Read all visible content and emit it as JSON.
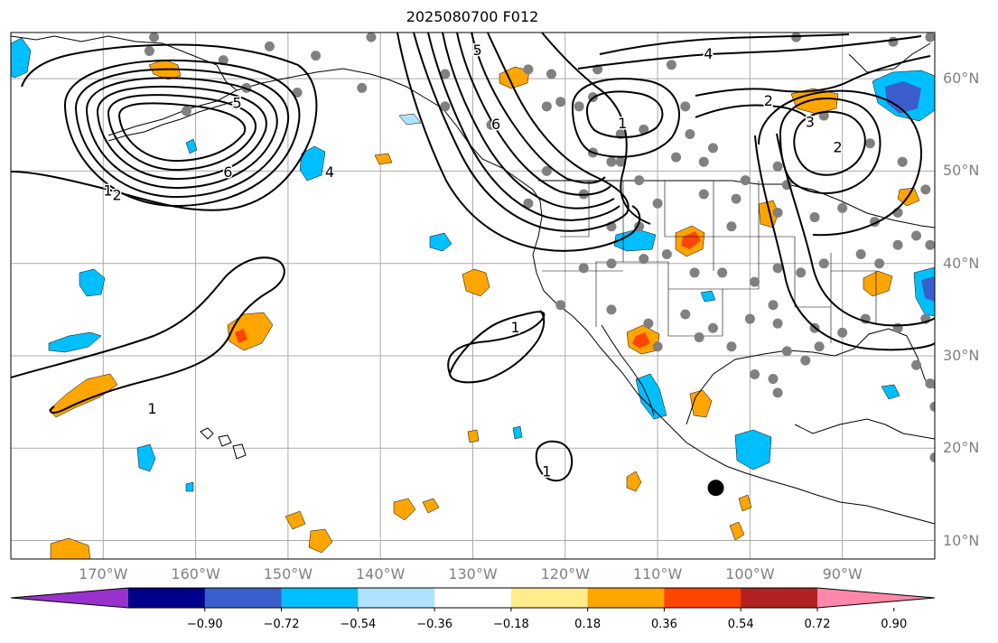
{
  "title": "2025080700 F012",
  "lat_labels": [
    {
      "text": "60°N",
      "lat": 60
    },
    {
      "text": "50°N",
      "lat": 50
    },
    {
      "text": "40°N",
      "lat": 40
    },
    {
      "text": "30°N",
      "lat": 30
    },
    {
      "text": "20°N",
      "lat": 20
    },
    {
      "text": "10°N",
      "lat": 10
    }
  ],
  "lon_labels": [
    {
      "text": "170°W",
      "lon": -170
    },
    {
      "text": "160°W",
      "lon": -160
    },
    {
      "text": "150°W",
      "lon": -150
    },
    {
      "text": "140°W",
      "lon": -140
    },
    {
      "text": "130°W",
      "lon": -130
    },
    {
      "text": "120°W",
      "lon": -120
    },
    {
      "text": "110°W",
      "lon": -110
    },
    {
      "text": "100°W",
      "lon": -100
    },
    {
      "text": "90°W",
      "lon": -90
    }
  ],
  "colorbar": {
    "colors": [
      "#9932cc",
      "#00008b",
      "#3a5fcd",
      "#00bfff",
      "#b0e2ff",
      "#ffffff",
      "#ffec8b",
      "#ffa500",
      "#ff4500",
      "#b22222",
      "#ff88aa"
    ],
    "ticks": [
      "−0.90",
      "−0.72",
      "−0.54",
      "−0.36",
      "−0.18",
      "0.18",
      "0.36",
      "0.54",
      "0.72",
      "0.90"
    ]
  },
  "contour_labels": [
    {
      "text": "5",
      "lon": -155.5,
      "lat": 57.3
    },
    {
      "text": "6",
      "lon": -156.5,
      "lat": 49.8
    },
    {
      "text": "4",
      "lon": -145.5,
      "lat": 49.8
    },
    {
      "text": "1",
      "lon": -169.5,
      "lat": 47.8
    },
    {
      "text": "2",
      "lon": -168.5,
      "lat": 47.3
    },
    {
      "text": "5",
      "lon": -129.5,
      "lat": 63.0
    },
    {
      "text": "6",
      "lon": -127.5,
      "lat": 55.0
    },
    {
      "text": "1",
      "lon": -113.8,
      "lat": 55.1
    },
    {
      "text": "4",
      "lon": -104.5,
      "lat": 62.6
    },
    {
      "text": "2",
      "lon": -98.0,
      "lat": 57.5
    },
    {
      "text": "3",
      "lon": -93.5,
      "lat": 55.2
    },
    {
      "text": "2",
      "lon": -90.5,
      "lat": 52.5
    },
    {
      "text": "1",
      "lon": -125.4,
      "lat": 33.0
    },
    {
      "text": "1",
      "lon": -122.0,
      "lat": 17.4
    },
    {
      "text": "1",
      "lon": -164.7,
      "lat": 24.2
    }
  ],
  "dark_dot": {
    "lon": -103.7,
    "lat": 15.7
  }
}
